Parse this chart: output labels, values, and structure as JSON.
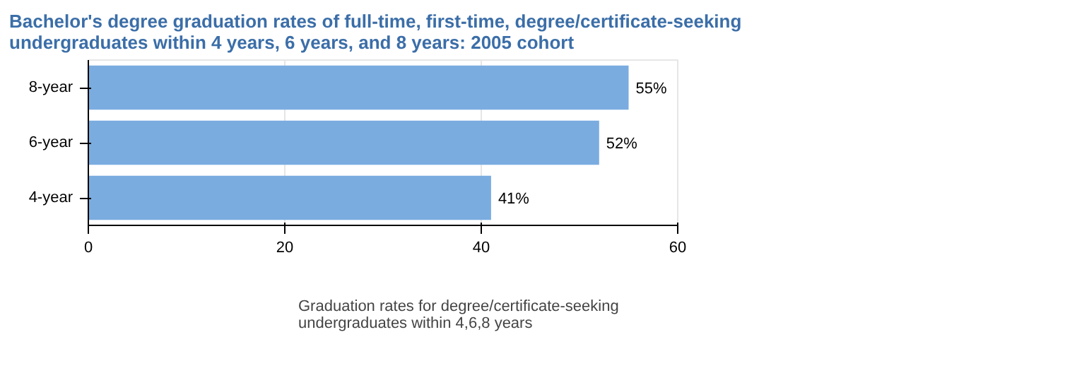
{
  "chart_data": {
    "type": "bar",
    "orientation": "horizontal",
    "title": "Bachelor's degree graduation rates of full-time, first-time, degree/certificate-seeking undergraduates within 4 years, 6 years, and 8 years: 2005 cohort",
    "categories": [
      "8-year",
      "6-year",
      "4-year"
    ],
    "series": [
      {
        "name": "Graduation rates for degree/certificate-seeking undergraduates within 4,6,8 years",
        "color": "#7aace0",
        "values": [
          55,
          52,
          41
        ],
        "value_labels": [
          "55%",
          "52%",
          "41%"
        ]
      }
    ],
    "xlim": [
      0,
      60
    ],
    "xticks": [
      0,
      20,
      40,
      60
    ],
    "grid": "x",
    "legend": "bottom"
  }
}
